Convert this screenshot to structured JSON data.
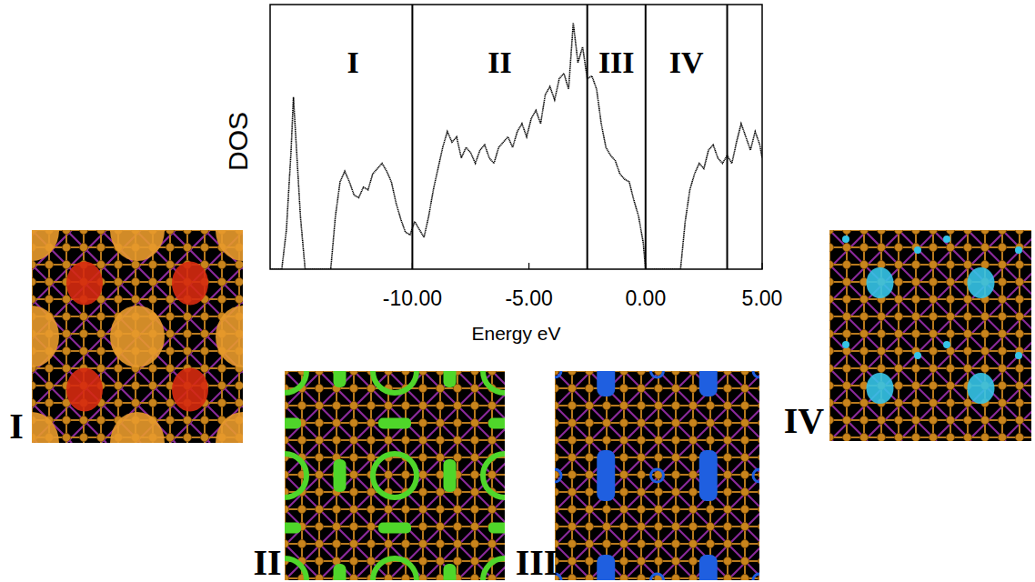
{
  "chart_data": {
    "type": "line",
    "x_label": "Energy eV",
    "y_label": "DOS",
    "color": "#000000",
    "line_style": "dotted",
    "tick_labels": "x",
    "xlim": [
      -16.1,
      5.0
    ],
    "ylim": [
      0,
      1
    ],
    "xticks": [
      {
        "value": -10,
        "label": "-10.00"
      },
      {
        "value": -5,
        "label": "-5.00"
      },
      {
        "value": 0,
        "label": "0.00"
      },
      {
        "value": 5,
        "label": "5.00"
      }
    ],
    "x": [
      -16.1,
      -15.6,
      -15.4,
      -15.2,
      -15.1,
      -15.0,
      -14.8,
      -14.6,
      -13.5,
      -13.3,
      -13.1,
      -12.9,
      -12.7,
      -12.5,
      -12.3,
      -12.1,
      -11.9,
      -11.7,
      -11.5,
      -11.3,
      -11.1,
      -10.9,
      -10.7,
      -10.5,
      -10.3,
      -10.1,
      -9.9,
      -9.7,
      -9.5,
      -9.3,
      -9.1,
      -8.9,
      -8.7,
      -8.5,
      -8.3,
      -8.1,
      -7.9,
      -7.7,
      -7.5,
      -7.3,
      -7.1,
      -6.9,
      -6.7,
      -6.5,
      -6.3,
      -6.1,
      -5.9,
      -5.7,
      -5.5,
      -5.3,
      -5.1,
      -4.9,
      -4.7,
      -4.5,
      -4.3,
      -4.1,
      -3.9,
      -3.7,
      -3.5,
      -3.3,
      -3.1,
      -2.9,
      -2.7,
      -2.5,
      -2.3,
      -2.1,
      -1.9,
      -1.7,
      -1.5,
      -1.3,
      -1.1,
      -0.9,
      -0.7,
      -0.5,
      -0.3,
      -0.1,
      0.0,
      1.5,
      1.7,
      1.9,
      2.1,
      2.3,
      2.5,
      2.7,
      2.9,
      3.1,
      3.3,
      3.5,
      3.7,
      3.9,
      4.1,
      4.3,
      4.5,
      4.7,
      4.9,
      5.0
    ],
    "values": [
      0,
      0,
      0.15,
      0.45,
      0.65,
      0.5,
      0.2,
      0,
      0,
      0.2,
      0.33,
      0.37,
      0.33,
      0.28,
      0.27,
      0.31,
      0.3,
      0.36,
      0.38,
      0.4,
      0.37,
      0.33,
      0.25,
      0.19,
      0.14,
      0.13,
      0.18,
      0.15,
      0.12,
      0.2,
      0.3,
      0.38,
      0.46,
      0.52,
      0.48,
      0.5,
      0.42,
      0.46,
      0.44,
      0.4,
      0.45,
      0.47,
      0.42,
      0.4,
      0.46,
      0.48,
      0.5,
      0.46,
      0.52,
      0.55,
      0.5,
      0.57,
      0.6,
      0.55,
      0.66,
      0.69,
      0.64,
      0.72,
      0.74,
      0.68,
      0.93,
      0.78,
      0.84,
      0.72,
      0.73,
      0.68,
      0.55,
      0.46,
      0.43,
      0.41,
      0.36,
      0.34,
      0.33,
      0.26,
      0.2,
      0.1,
      0,
      0,
      0.18,
      0.3,
      0.36,
      0.4,
      0.38,
      0.45,
      0.47,
      0.42,
      0.4,
      0.43,
      0.4,
      0.48,
      0.55,
      0.5,
      0.45,
      0.52,
      0.47,
      0.42
    ],
    "vlines": [
      -10,
      -2.5,
      0,
      3.5
    ],
    "regions": [
      {
        "label": "I",
        "from": -16.1,
        "to": -10
      },
      {
        "label": "II",
        "from": -10,
        "to": -2.5
      },
      {
        "label": "III",
        "from": -2.5,
        "to": 0
      },
      {
        "label": "IV",
        "from": 0,
        "to": 3.5
      }
    ]
  },
  "panels": [
    {
      "label": "I",
      "color": "#e89a2c"
    },
    {
      "label": "II",
      "color": "#4fd62a"
    },
    {
      "label": "III",
      "color": "#1f5fe0"
    },
    {
      "label": "IV",
      "color": "#35c4e8"
    }
  ]
}
